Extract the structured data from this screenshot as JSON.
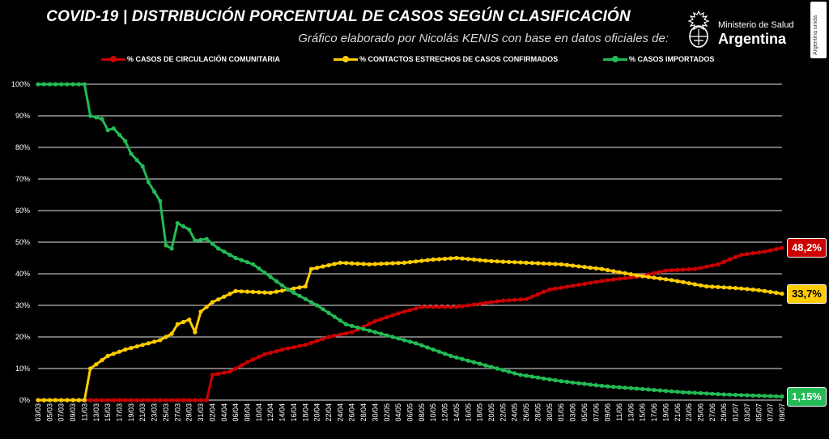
{
  "header": {
    "title": "COVID-19  |  DISTRIBUCIÓN PORCENTUAL DE CASOS SEGÚN CLASIFICACIÓN",
    "subtitle": "Gráfico elaborado por Nicolás KENIS con base en datos oficiales de:",
    "logo_line1": "Ministerio de Salud",
    "logo_line2": "Argentina",
    "badge_text": "Argentina unida"
  },
  "chart_data": {
    "type": "line",
    "title": "COVID-19  |  DISTRIBUCIÓN PORCENTUAL DE CASOS SEGÚN CLASIFICACIÓN",
    "xlabel": "",
    "ylabel": "",
    "ylim": [
      0,
      100
    ],
    "yticks": [
      "0%",
      "10%",
      "20%",
      "30%",
      "40%",
      "50%",
      "60%",
      "70%",
      "80%",
      "90%",
      "100%"
    ],
    "x_start": "2020-03-03",
    "x_end": "2020-07-09",
    "x_tick_labels": [
      "03/03",
      "05/03",
      "07/03",
      "09/03",
      "11/03",
      "13/03",
      "15/03",
      "17/03",
      "19/03",
      "21/03",
      "23/03",
      "25/03",
      "27/03",
      "29/03",
      "31/03",
      "02/04",
      "04/04",
      "06/04",
      "08/04",
      "10/04",
      "12/04",
      "14/04",
      "16/04",
      "18/04",
      "20/04",
      "22/04",
      "24/04",
      "26/04",
      "28/04",
      "30/04",
      "02/05",
      "04/05",
      "06/05",
      "08/05",
      "10/05",
      "12/05",
      "14/05",
      "16/05",
      "18/05",
      "20/05",
      "22/05",
      "24/05",
      "26/05",
      "28/05",
      "30/05",
      "01/06",
      "03/06",
      "05/06",
      "07/06",
      "09/06",
      "11/06",
      "13/06",
      "15/06",
      "17/06",
      "19/06",
      "21/06",
      "23/06",
      "25/06",
      "27/06",
      "29/06",
      "01/07",
      "03/07",
      "05/07",
      "07/07",
      "09/07"
    ],
    "grid": true,
    "legend_position": "top",
    "series": [
      {
        "name": "% CASOS DE CIRCULACIÓN COMUNITARIA",
        "color": "#cc0000",
        "end_label": "48,2%",
        "points": [
          [
            "2020-03-03",
            0
          ],
          [
            "2020-04-01",
            0
          ],
          [
            "2020-04-02",
            8
          ],
          [
            "2020-04-05",
            9
          ],
          [
            "2020-04-08",
            12
          ],
          [
            "2020-04-11",
            14.5
          ],
          [
            "2020-04-14",
            16
          ],
          [
            "2020-04-18",
            17.5
          ],
          [
            "2020-04-22",
            20
          ],
          [
            "2020-04-26",
            21.5
          ],
          [
            "2020-04-30",
            25
          ],
          [
            "2020-05-04",
            27.5
          ],
          [
            "2020-05-08",
            29.5
          ],
          [
            "2020-05-14",
            29.5
          ],
          [
            "2020-05-18",
            30.5
          ],
          [
            "2020-05-22",
            31.5
          ],
          [
            "2020-05-26",
            32
          ],
          [
            "2020-05-30",
            35
          ],
          [
            "2020-06-04",
            36.5
          ],
          [
            "2020-06-09",
            38
          ],
          [
            "2020-06-14",
            39
          ],
          [
            "2020-06-19",
            41
          ],
          [
            "2020-06-24",
            41.5
          ],
          [
            "2020-06-28",
            43
          ],
          [
            "2020-07-02",
            46
          ],
          [
            "2020-07-06",
            47
          ],
          [
            "2020-07-09",
            48.2
          ]
        ]
      },
      {
        "name": "% CONTACTOS ESTRECHOS DE CASOS CONFIRMADOS",
        "color": "#ffcc00",
        "end_label": "33,7%",
        "points": [
          [
            "2020-03-03",
            0
          ],
          [
            "2020-03-11",
            0
          ],
          [
            "2020-03-12",
            10
          ],
          [
            "2020-03-15",
            14
          ],
          [
            "2020-03-18",
            16
          ],
          [
            "2020-03-21",
            17.5
          ],
          [
            "2020-03-24",
            19
          ],
          [
            "2020-03-26",
            21
          ],
          [
            "2020-03-27",
            24
          ],
          [
            "2020-03-29",
            25.5
          ],
          [
            "2020-03-30",
            21.5
          ],
          [
            "2020-03-31",
            28
          ],
          [
            "2020-04-02",
            31
          ],
          [
            "2020-04-06",
            34.5
          ],
          [
            "2020-04-12",
            34
          ],
          [
            "2020-04-15",
            35
          ],
          [
            "2020-04-18",
            36
          ],
          [
            "2020-04-19",
            41.5
          ],
          [
            "2020-04-24",
            43.5
          ],
          [
            "2020-04-29",
            43
          ],
          [
            "2020-05-05",
            43.5
          ],
          [
            "2020-05-10",
            44.5
          ],
          [
            "2020-05-14",
            45
          ],
          [
            "2020-05-20",
            44
          ],
          [
            "2020-05-26",
            43.5
          ],
          [
            "2020-06-01",
            43
          ],
          [
            "2020-06-08",
            41.5
          ],
          [
            "2020-06-14",
            39.5
          ],
          [
            "2020-06-20",
            38
          ],
          [
            "2020-06-26",
            36
          ],
          [
            "2020-07-01",
            35.5
          ],
          [
            "2020-07-05",
            34.8
          ],
          [
            "2020-07-09",
            33.7
          ]
        ]
      },
      {
        "name": "% CASOS IMPORTADOS",
        "color": "#22bb55",
        "end_label": "1,15%",
        "points": [
          [
            "2020-03-03",
            100
          ],
          [
            "2020-03-11",
            100
          ],
          [
            "2020-03-12",
            90
          ],
          [
            "2020-03-14",
            89
          ],
          [
            "2020-03-15",
            85.5
          ],
          [
            "2020-03-16",
            86
          ],
          [
            "2020-03-18",
            82
          ],
          [
            "2020-03-19",
            78
          ],
          [
            "2020-03-21",
            74
          ],
          [
            "2020-03-22",
            69
          ],
          [
            "2020-03-24",
            63
          ],
          [
            "2020-03-25",
            49
          ],
          [
            "2020-03-26",
            48
          ],
          [
            "2020-03-27",
            56
          ],
          [
            "2020-03-29",
            54
          ],
          [
            "2020-03-30",
            50.5
          ],
          [
            "2020-04-01",
            51
          ],
          [
            "2020-04-03",
            48
          ],
          [
            "2020-04-06",
            45
          ],
          [
            "2020-04-09",
            43
          ],
          [
            "2020-04-12",
            39
          ],
          [
            "2020-04-15",
            35
          ],
          [
            "2020-04-20",
            30
          ],
          [
            "2020-04-25",
            24
          ],
          [
            "2020-05-01",
            21
          ],
          [
            "2020-05-07",
            18
          ],
          [
            "2020-05-13",
            14
          ],
          [
            "2020-05-19",
            11
          ],
          [
            "2020-05-25",
            8
          ],
          [
            "2020-06-01",
            6
          ],
          [
            "2020-06-08",
            4.5
          ],
          [
            "2020-06-15",
            3.5
          ],
          [
            "2020-06-22",
            2.5
          ],
          [
            "2020-06-29",
            1.8
          ],
          [
            "2020-07-05",
            1.4
          ],
          [
            "2020-07-09",
            1.15
          ]
        ]
      }
    ]
  }
}
